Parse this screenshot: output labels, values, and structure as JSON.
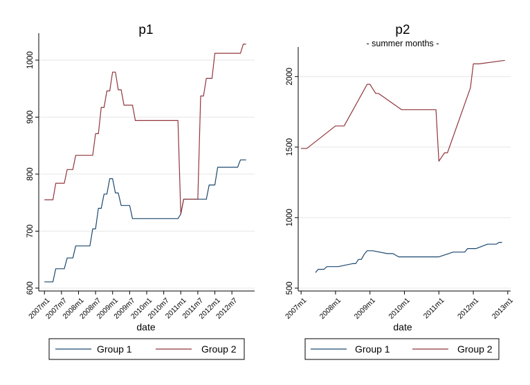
{
  "colors": {
    "group1": "#1a476f",
    "group2": "#90353b"
  },
  "chart_data": [
    {
      "type": "line",
      "title": "p1",
      "subtitle": "",
      "xlabel": "date",
      "ylabel": "",
      "xlim": [
        "2006m11",
        "2013m3"
      ],
      "ylim": [
        595,
        1040
      ],
      "grid": true,
      "legend": "bottom",
      "x_ticks": [
        "2007m1",
        "2007m7",
        "2008m1",
        "2008m7",
        "2009m1",
        "2009m7",
        "2010m1",
        "2010m7",
        "2011m1",
        "2011m7",
        "2012m1",
        "2012m7"
      ],
      "y_ticks": [
        600,
        700,
        800,
        900,
        1000
      ],
      "series": [
        {
          "name": "Group 1",
          "color": "#1a476f",
          "points": [
            [
              "2007m1",
              611
            ],
            [
              "2007m4",
              611
            ],
            [
              "2007m5",
              634
            ],
            [
              "2007m8",
              634
            ],
            [
              "2007m9",
              653
            ],
            [
              "2007m11",
              653
            ],
            [
              "2007m12",
              674
            ],
            [
              "2008m5",
              674
            ],
            [
              "2008m6",
              704
            ],
            [
              "2008m7",
              704
            ],
            [
              "2008m8",
              740
            ],
            [
              "2008m9",
              740
            ],
            [
              "2008m10",
              765
            ],
            [
              "2008m11",
              765
            ],
            [
              "2008m12",
              792
            ],
            [
              "2009m1",
              792
            ],
            [
              "2009m2",
              767
            ],
            [
              "2009m3",
              767
            ],
            [
              "2009m4",
              745
            ],
            [
              "2009m7",
              745
            ],
            [
              "2009m8",
              722
            ],
            [
              "2010m12",
              722
            ],
            [
              "2011m1",
              730
            ],
            [
              "2011m2",
              756
            ],
            [
              "2011m10",
              756
            ],
            [
              "2011m11",
              781
            ],
            [
              "2012m1",
              781
            ],
            [
              "2012m2",
              812
            ],
            [
              "2012m9",
              812
            ],
            [
              "2012m10",
              825
            ],
            [
              "2012m12",
              825
            ]
          ]
        },
        {
          "name": "Group 2",
          "color": "#90353b",
          "points": [
            [
              "2007m1",
              755
            ],
            [
              "2007m4",
              755
            ],
            [
              "2007m5",
              784
            ],
            [
              "2007m8",
              784
            ],
            [
              "2007m9",
              808
            ],
            [
              "2007m11",
              808
            ],
            [
              "2007m12",
              833
            ],
            [
              "2008m6",
              833
            ],
            [
              "2008m7",
              871
            ],
            [
              "2008m8",
              871
            ],
            [
              "2008m9",
              917
            ],
            [
              "2008m10",
              917
            ],
            [
              "2008m11",
              946
            ],
            [
              "2008m12",
              946
            ],
            [
              "2009m1",
              979
            ],
            [
              "2009m2",
              979
            ],
            [
              "2009m3",
              948
            ],
            [
              "2009m4",
              948
            ],
            [
              "2009m5",
              921
            ],
            [
              "2009m8",
              921
            ],
            [
              "2009m9",
              894
            ],
            [
              "2010m12",
              894
            ],
            [
              "2011m1",
              730
            ],
            [
              "2011m2",
              756
            ],
            [
              "2011m7",
              756
            ],
            [
              "2011m8",
              937
            ],
            [
              "2011m9",
              937
            ],
            [
              "2011m10",
              968
            ],
            [
              "2011m12",
              968
            ],
            [
              "2012m1",
              1012
            ],
            [
              "2012m10",
              1012
            ],
            [
              "2012m11",
              1028
            ],
            [
              "2012m12",
              1028
            ]
          ]
        }
      ]
    },
    {
      "type": "line",
      "title": "p2",
      "subtitle": "- summer months -",
      "xlabel": "date",
      "ylabel": "",
      "xlim": [
        "2006m12",
        "2013m2"
      ],
      "ylim": [
        480,
        2180
      ],
      "grid": true,
      "legend": "bottom",
      "x_ticks": [
        "2007m1",
        "2008m1",
        "2009m1",
        "2010m1",
        "2011m1",
        "2012m1",
        "2013m1"
      ],
      "y_ticks": [
        500,
        1000,
        1500,
        2000
      ],
      "series": [
        {
          "name": "Group 1",
          "color": "#1a476f",
          "points": [
            [
              "2007m6",
              611
            ],
            [
              "2007m7",
              634
            ],
            [
              "2007m9",
              634
            ],
            [
              "2007m10",
              653
            ],
            [
              "2008m2",
              653
            ],
            [
              "2008m7",
              674
            ],
            [
              "2008m8",
              674
            ],
            [
              "2008m9",
              704
            ],
            [
              "2008m10",
              704
            ],
            [
              "2008m11",
              740
            ],
            [
              "2008m12",
              765
            ],
            [
              "2009m2",
              765
            ],
            [
              "2009m7",
              745
            ],
            [
              "2009m9",
              745
            ],
            [
              "2009m11",
              722
            ],
            [
              "2011m1",
              722
            ],
            [
              "2011m6",
              756
            ],
            [
              "2011m10",
              756
            ],
            [
              "2011m11",
              781
            ],
            [
              "2012m2",
              781
            ],
            [
              "2012m6",
              812
            ],
            [
              "2012m9",
              812
            ],
            [
              "2012m10",
              825
            ],
            [
              "2012m11",
              825
            ]
          ]
        },
        {
          "name": "Group 2",
          "color": "#90353b",
          "points": [
            [
              "2007m1",
              1490
            ],
            [
              "2007m3",
              1490
            ],
            [
              "2008m1",
              1650
            ],
            [
              "2008m4",
              1650
            ],
            [
              "2008m12",
              1945
            ],
            [
              "2009m1",
              1945
            ],
            [
              "2009m3",
              1880
            ],
            [
              "2009m4",
              1880
            ],
            [
              "2009m12",
              1765
            ],
            [
              "2010m12",
              1765
            ],
            [
              "2011m1",
              1400
            ],
            [
              "2011m3",
              1460
            ],
            [
              "2011m4",
              1460
            ],
            [
              "2011m12",
              1920
            ],
            [
              "2012m1",
              2090
            ],
            [
              "2012m3",
              2090
            ],
            [
              "2012m12",
              2115
            ]
          ]
        }
      ]
    }
  ]
}
